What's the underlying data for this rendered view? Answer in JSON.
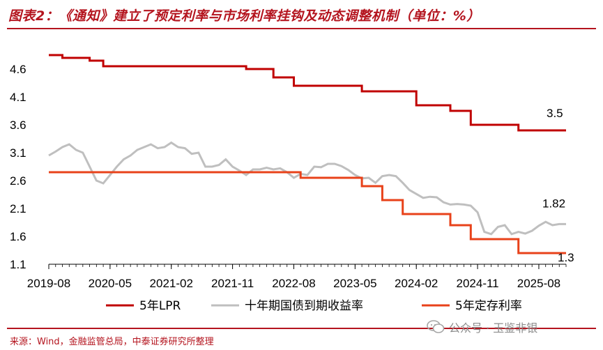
{
  "title": "图表2：《通知》建立了预定利率与市场利率挂钩及动态调整机制（单位：%）",
  "source": "来源：Wind，金融监管总局，中泰证券研究所整理",
  "watermark": "公众号 · 玉鉴非银",
  "colors": {
    "accent": "#b4141e",
    "lpr": "#c00000",
    "bond": "#bfbfbf",
    "deposit": "#e8421a"
  },
  "chart_data": {
    "type": "line",
    "title": "",
    "xlabel": "",
    "ylabel": "",
    "ylim": [
      1.1,
      4.9
    ],
    "yticks": [
      "1.1",
      "1.6",
      "2.1",
      "2.6",
      "3.1",
      "3.6",
      "4.1",
      "4.6"
    ],
    "xticks": [
      "2019-08",
      "2020-05",
      "2021-02",
      "2021-11",
      "2022-08",
      "2023-05",
      "2024-02",
      "2024-11",
      "2025-08"
    ],
    "xlim": [
      "2019-08",
      "2025-12"
    ],
    "legend_position": "bottom",
    "series": [
      {
        "name": "5年LPR",
        "color": "#c00000",
        "step": true,
        "points": [
          [
            "2019-08",
            4.85
          ],
          [
            "2019-10",
            4.8
          ],
          [
            "2019-12",
            4.8
          ],
          [
            "2020-02",
            4.75
          ],
          [
            "2020-04",
            4.65
          ],
          [
            "2021-12",
            4.65
          ],
          [
            "2022-01",
            4.6
          ],
          [
            "2022-05",
            4.45
          ],
          [
            "2022-08",
            4.3
          ],
          [
            "2023-06",
            4.2
          ],
          [
            "2024-02",
            3.95
          ],
          [
            "2024-07",
            3.85
          ],
          [
            "2024-10",
            3.6
          ],
          [
            "2025-05",
            3.5
          ],
          [
            "2025-12",
            3.5
          ]
        ],
        "end_label": "3.5"
      },
      {
        "name": "十年期国债到期收益率",
        "color": "#bfbfbf",
        "step": false,
        "points": [
          [
            "2019-08",
            3.05
          ],
          [
            "2019-09",
            3.12
          ],
          [
            "2019-10",
            3.2
          ],
          [
            "2019-11",
            3.25
          ],
          [
            "2019-12",
            3.15
          ],
          [
            "2020-01",
            3.1
          ],
          [
            "2020-02",
            2.85
          ],
          [
            "2020-03",
            2.6
          ],
          [
            "2020-04",
            2.55
          ],
          [
            "2020-05",
            2.7
          ],
          [
            "2020-06",
            2.85
          ],
          [
            "2020-07",
            2.98
          ],
          [
            "2020-08",
            3.05
          ],
          [
            "2020-09",
            3.15
          ],
          [
            "2020-10",
            3.2
          ],
          [
            "2020-11",
            3.25
          ],
          [
            "2020-12",
            3.18
          ],
          [
            "2021-01",
            3.2
          ],
          [
            "2021-02",
            3.28
          ],
          [
            "2021-03",
            3.2
          ],
          [
            "2021-04",
            3.18
          ],
          [
            "2021-05",
            3.08
          ],
          [
            "2021-06",
            3.1
          ],
          [
            "2021-07",
            2.85
          ],
          [
            "2021-08",
            2.85
          ],
          [
            "2021-09",
            2.88
          ],
          [
            "2021-10",
            2.98
          ],
          [
            "2021-11",
            2.85
          ],
          [
            "2021-12",
            2.78
          ],
          [
            "2022-01",
            2.7
          ],
          [
            "2022-02",
            2.8
          ],
          [
            "2022-03",
            2.8
          ],
          [
            "2022-04",
            2.83
          ],
          [
            "2022-05",
            2.8
          ],
          [
            "2022-06",
            2.82
          ],
          [
            "2022-07",
            2.75
          ],
          [
            "2022-08",
            2.65
          ],
          [
            "2022-09",
            2.72
          ],
          [
            "2022-10",
            2.7
          ],
          [
            "2022-11",
            2.85
          ],
          [
            "2022-12",
            2.84
          ],
          [
            "2023-01",
            2.9
          ],
          [
            "2023-02",
            2.9
          ],
          [
            "2023-03",
            2.86
          ],
          [
            "2023-04",
            2.79
          ],
          [
            "2023-05",
            2.7
          ],
          [
            "2023-06",
            2.64
          ],
          [
            "2023-07",
            2.65
          ],
          [
            "2023-08",
            2.56
          ],
          [
            "2023-09",
            2.68
          ],
          [
            "2023-10",
            2.7
          ],
          [
            "2023-11",
            2.68
          ],
          [
            "2023-12",
            2.56
          ],
          [
            "2024-01",
            2.43
          ],
          [
            "2024-02",
            2.36
          ],
          [
            "2024-03",
            2.29
          ],
          [
            "2024-04",
            2.31
          ],
          [
            "2024-05",
            2.3
          ],
          [
            "2024-06",
            2.21
          ],
          [
            "2024-07",
            2.17
          ],
          [
            "2024-08",
            2.18
          ],
          [
            "2024-09",
            2.17
          ],
          [
            "2024-10",
            2.15
          ],
          [
            "2024-11",
            2.03
          ],
          [
            "2024-12",
            1.68
          ],
          [
            "2025-01",
            1.64
          ],
          [
            "2025-02",
            1.77
          ],
          [
            "2025-03",
            1.8
          ],
          [
            "2025-04",
            1.64
          ],
          [
            "2025-05",
            1.68
          ],
          [
            "2025-06",
            1.65
          ],
          [
            "2025-07",
            1.7
          ],
          [
            "2025-08",
            1.79
          ],
          [
            "2025-09",
            1.86
          ],
          [
            "2025-10",
            1.8
          ],
          [
            "2025-11",
            1.82
          ],
          [
            "2025-12",
            1.82
          ]
        ],
        "end_label": "1.82"
      },
      {
        "name": "5年定存利率",
        "color": "#e8421a",
        "step": true,
        "points": [
          [
            "2019-08",
            2.75
          ],
          [
            "2022-09",
            2.65
          ],
          [
            "2023-06",
            2.5
          ],
          [
            "2023-09",
            2.25
          ],
          [
            "2023-12",
            2.0
          ],
          [
            "2024-07",
            1.8
          ],
          [
            "2024-10",
            1.55
          ],
          [
            "2025-05",
            1.3
          ],
          [
            "2025-12",
            1.3
          ]
        ],
        "end_label": "1.3"
      }
    ]
  }
}
